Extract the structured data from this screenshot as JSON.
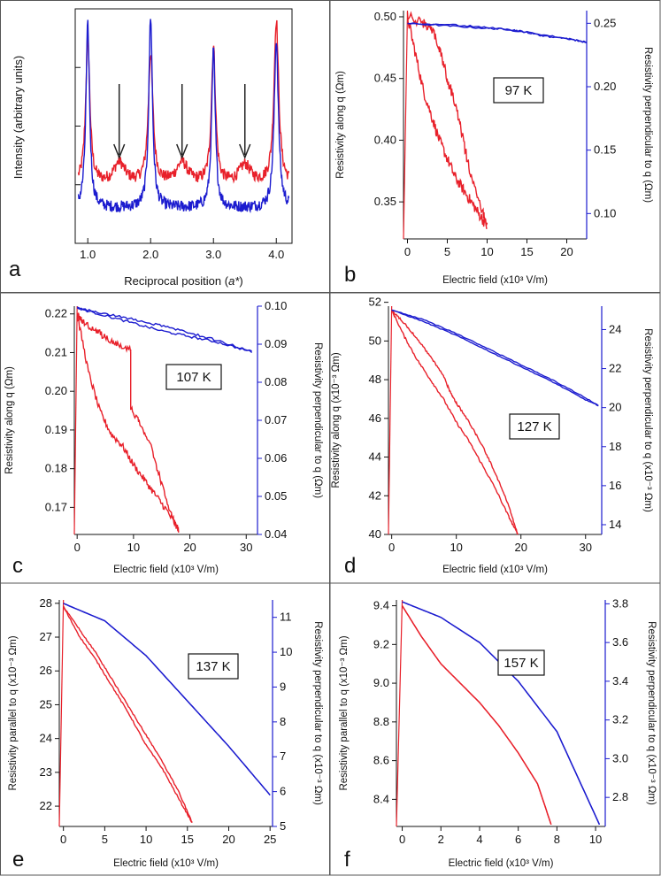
{
  "figure": {
    "colors": {
      "red": "#e8202a",
      "blue": "#1c1ccf",
      "frame": "#555555",
      "arrow": "#222222"
    }
  },
  "chart_data": [
    {
      "panel": "a",
      "type": "line",
      "title": "",
      "xlabel": "Reciprocal position (a*)",
      "xlabel_parts": [
        "Reciprocal position (",
        "a*",
        ")"
      ],
      "ylabel": "Intensity (arbitrary units)",
      "xlim": [
        0.8,
        4.25
      ],
      "ylim": [
        0,
        1
      ],
      "xticks": [
        1.0,
        2.0,
        3.0,
        4.0
      ],
      "xtick_labels": [
        "1.0",
        "2.0",
        "3.0",
        "4.0"
      ],
      "annotations": [
        {
          "type": "arrow",
          "x": 1.5
        },
        {
          "type": "arrow",
          "x": 2.5
        },
        {
          "type": "arrow",
          "x": 3.5
        }
      ],
      "series": [
        {
          "name": "red",
          "color": "#e8202a",
          "base": 0.25,
          "peaks": [
            [
              1.0,
              0.62,
              0.04
            ],
            [
              2.0,
              0.55,
              0.045
            ],
            [
              3.0,
              0.58,
              0.04
            ],
            [
              4.0,
              0.7,
              0.045
            ],
            [
              1.5,
              0.09,
              0.11
            ],
            [
              2.5,
              0.09,
              0.11
            ],
            [
              3.5,
              0.08,
              0.11
            ]
          ]
        },
        {
          "name": "blue",
          "color": "#1c1ccf",
          "base": 0.15,
          "peaks": [
            [
              1.0,
              0.78,
              0.035
            ],
            [
              2.0,
              0.82,
              0.035
            ],
            [
              3.0,
              0.67,
              0.035
            ],
            [
              4.0,
              0.72,
              0.04
            ]
          ]
        }
      ]
    },
    {
      "panel": "b",
      "type": "line",
      "label": "97 K",
      "xlabel": "Electric field (x10³ V/m)",
      "ylabel_left": "Resistivity along q (Ωm)",
      "ylabel_right": "Resistivity perpendicular to q (Ωm)",
      "xlim": [
        -0.5,
        22.5
      ],
      "ylim_left": [
        0.32,
        0.505
      ],
      "ylim_right": [
        0.08,
        0.26
      ],
      "xticks": [
        0,
        5,
        10,
        15,
        20
      ],
      "xtick_labels": [
        "0",
        "5",
        "10",
        "15",
        "20"
      ],
      "yticks_left": [
        0.35,
        0.4,
        0.45,
        0.5
      ],
      "ytick_left_labels": [
        "0.35",
        "0.40",
        "0.45",
        "0.50"
      ],
      "yticks_right": [
        0.1,
        0.15,
        0.2,
        0.25
      ],
      "ytick_right_labels": [
        "0.10",
        "0.15",
        "0.20",
        "0.25"
      ],
      "red": {
        "down": [
          [
            0,
            0.5
          ],
          [
            1,
            0.47
          ],
          [
            2,
            0.44
          ],
          [
            3,
            0.42
          ],
          [
            4,
            0.4
          ],
          [
            5,
            0.385
          ],
          [
            6,
            0.37
          ],
          [
            7,
            0.36
          ],
          [
            8,
            0.35
          ],
          [
            9,
            0.34
          ],
          [
            10,
            0.33
          ]
        ],
        "up": [
          [
            10,
            0.33
          ],
          [
            9.5,
            0.34
          ],
          [
            8,
            0.37
          ],
          [
            7,
            0.4
          ],
          [
            6,
            0.43
          ],
          [
            5,
            0.45
          ],
          [
            4,
            0.475
          ],
          [
            3,
            0.49
          ],
          [
            2,
            0.495
          ],
          [
            0,
            0.5
          ]
        ],
        "noise": 0.004,
        "vline": 0.5
      },
      "blue": {
        "down": [
          [
            0,
            0.25
          ],
          [
            5,
            0.248
          ],
          [
            10,
            0.246
          ],
          [
            13,
            0.245
          ],
          [
            15,
            0.243
          ],
          [
            20,
            0.238
          ],
          [
            22.5,
            0.235
          ]
        ],
        "up": [
          [
            22.5,
            0.235
          ],
          [
            20,
            0.238
          ],
          [
            17,
            0.24
          ],
          [
            15,
            0.243
          ],
          [
            10,
            0.247
          ],
          [
            5,
            0.249
          ],
          [
            0,
            0.25
          ]
        ],
        "noise": 0.0006
      }
    },
    {
      "panel": "c",
      "type": "line",
      "label": "107 K",
      "xlabel": "Electric field (x10³ V/m)",
      "ylabel_left": "Resistivity along q (Ωm)",
      "ylabel_right": "Resistivity perpendicular to q (Ωm)",
      "xlim": [
        -0.5,
        32
      ],
      "ylim_left": [
        0.163,
        0.222
      ],
      "ylim_right": [
        0.04,
        0.1
      ],
      "xticks": [
        0,
        10,
        20,
        30
      ],
      "xtick_labels": [
        "0",
        "10",
        "20",
        "30"
      ],
      "yticks_left": [
        0.17,
        0.18,
        0.19,
        0.2,
        0.21,
        0.22
      ],
      "ytick_left_labels": [
        "0.17",
        "0.18",
        "0.19",
        "0.20",
        "0.21",
        "0.22"
      ],
      "yticks_right": [
        0.04,
        0.05,
        0.06,
        0.07,
        0.08,
        0.09,
        0.1
      ],
      "ytick_right_labels": [
        "0.04",
        "0.05",
        "0.06",
        "0.07",
        "0.08",
        "0.09",
        "0.10"
      ],
      "red": {
        "down": [
          [
            0,
            0.22
          ],
          [
            2,
            0.205
          ],
          [
            4,
            0.195
          ],
          [
            6,
            0.189
          ],
          [
            8,
            0.186
          ],
          [
            10,
            0.181
          ],
          [
            12,
            0.177
          ],
          [
            14,
            0.173
          ],
          [
            16,
            0.169
          ],
          [
            18,
            0.164
          ]
        ],
        "up": [
          [
            18,
            0.164
          ],
          [
            17,
            0.167
          ],
          [
            15,
            0.176
          ],
          [
            13,
            0.186
          ],
          [
            11,
            0.192
          ],
          [
            9.5,
            0.196
          ],
          [
            9.5,
            0.211
          ],
          [
            7,
            0.212
          ],
          [
            5,
            0.214
          ],
          [
            3,
            0.216
          ],
          [
            1,
            0.218
          ],
          [
            0,
            0.22
          ]
        ],
        "noise": 0.0008,
        "vline": 0.5
      },
      "blue": {
        "down": [
          [
            0,
            0.0995
          ],
          [
            5,
            0.0975
          ],
          [
            10,
            0.0955
          ],
          [
            15,
            0.0935
          ],
          [
            20,
            0.092
          ],
          [
            25,
            0.0905
          ],
          [
            31,
            0.088
          ]
        ],
        "up": [
          [
            31,
            0.088
          ],
          [
            25,
            0.091
          ],
          [
            20,
            0.093
          ],
          [
            15,
            0.0948
          ],
          [
            10,
            0.0965
          ],
          [
            5,
            0.098
          ],
          [
            0,
            0.0995
          ]
        ],
        "noise": 0.0003
      }
    },
    {
      "panel": "d",
      "type": "line",
      "label": "127 K",
      "xlabel": "Electric field (x10³ V/m)",
      "ylabel_left": "Resistivity along q (x10⁻³ Ωm)",
      "ylabel_right": "Resistivity perpendicular to q (x10⁻³ Ωm)",
      "xlim": [
        -0.5,
        32.5
      ],
      "ylim_left": [
        40,
        51.8
      ],
      "ylim_right": [
        13.5,
        25.2
      ],
      "xticks": [
        0,
        10,
        20,
        30
      ],
      "xtick_labels": [
        "0",
        "10",
        "20",
        "30"
      ],
      "yticks_left": [
        40,
        42,
        44,
        46,
        48,
        50,
        52
      ],
      "ytick_left_labels": [
        "40",
        "42",
        "44",
        "46",
        "48",
        "50",
        "52"
      ],
      "yticks_right": [
        14,
        16,
        18,
        20,
        22,
        24
      ],
      "ytick_right_labels": [
        "14",
        "16",
        "18",
        "20",
        "22",
        "24"
      ],
      "red": {
        "down": [
          [
            0,
            51.6
          ],
          [
            2,
            50.2
          ],
          [
            4,
            49.0
          ],
          [
            6,
            48.0
          ],
          [
            8,
            47.0
          ],
          [
            10,
            45.8
          ],
          [
            12,
            44.8
          ],
          [
            14,
            43.6
          ],
          [
            16,
            42.4
          ],
          [
            18,
            41.0
          ],
          [
            19.5,
            40.0
          ]
        ],
        "up": [
          [
            19.5,
            40.0
          ],
          [
            18,
            41.6
          ],
          [
            16,
            43.2
          ],
          [
            14,
            44.6
          ],
          [
            12,
            45.8
          ],
          [
            10,
            46.8
          ],
          [
            9,
            47.4
          ],
          [
            8,
            48.2
          ],
          [
            6,
            49.2
          ],
          [
            4,
            50.1
          ],
          [
            2,
            50.9
          ],
          [
            0,
            51.6
          ]
        ],
        "noise": 0.05,
        "vline": 0.5
      },
      "blue": {
        "down": [
          [
            0,
            25.0
          ],
          [
            5,
            24.4
          ],
          [
            10,
            23.7
          ],
          [
            15,
            22.9
          ],
          [
            20,
            22.1
          ],
          [
            25,
            21.3
          ],
          [
            30,
            20.4
          ],
          [
            32,
            20.1
          ]
        ],
        "up": [
          [
            32,
            20.1
          ],
          [
            30,
            20.5
          ],
          [
            25,
            21.4
          ],
          [
            20,
            22.2
          ],
          [
            15,
            23.0
          ],
          [
            10,
            23.8
          ],
          [
            5,
            24.5
          ],
          [
            0,
            25.0
          ]
        ],
        "noise": 0.02
      }
    },
    {
      "panel": "e",
      "type": "line",
      "label": "137 K",
      "xlabel": "Electric field (x10³ V/m)",
      "ylabel_left": "Resistivity parallel to q (x10⁻³ Ωm)",
      "ylabel_right": "Resistivity perpendicular to q (x10⁻³ Ωm)",
      "xlim": [
        -0.5,
        25.3
      ],
      "ylim_left": [
        21.4,
        28.1
      ],
      "ylim_right": [
        5.0,
        11.5
      ],
      "xticks": [
        0,
        5,
        10,
        15,
        20,
        25
      ],
      "xtick_labels": [
        "0",
        "5",
        "10",
        "15",
        "20",
        "25"
      ],
      "yticks_left": [
        22,
        23,
        24,
        25,
        26,
        27,
        28
      ],
      "ytick_left_labels": [
        "22",
        "23",
        "24",
        "25",
        "26",
        "27",
        "28"
      ],
      "yticks_right": [
        5,
        6,
        7,
        8,
        9,
        10,
        11
      ],
      "ytick_right_labels": [
        "5",
        "6",
        "7",
        "8",
        "9",
        "10",
        "11"
      ],
      "red": {
        "down": [
          [
            0,
            27.9
          ],
          [
            2,
            27.0
          ],
          [
            4,
            26.3
          ],
          [
            6,
            25.5
          ],
          [
            8,
            24.7
          ],
          [
            10,
            23.8
          ],
          [
            12,
            23.1
          ],
          [
            14,
            22.2
          ],
          [
            15.6,
            21.5
          ]
        ],
        "up": [
          [
            15.6,
            21.5
          ],
          [
            14,
            22.4
          ],
          [
            12,
            23.3
          ],
          [
            10,
            24.1
          ],
          [
            8,
            24.9
          ],
          [
            6,
            25.7
          ],
          [
            4,
            26.5
          ],
          [
            2,
            27.2
          ],
          [
            0,
            27.9
          ]
        ],
        "noise": 0.02,
        "vline": 0.5
      },
      "blue": {
        "down": [
          [
            0,
            11.4
          ],
          [
            5,
            10.9
          ],
          [
            10,
            9.9
          ],
          [
            15,
            8.6
          ],
          [
            20,
            7.3
          ],
          [
            25,
            5.9
          ]
        ],
        "up": [
          [
            25,
            5.9
          ],
          [
            20,
            7.3
          ],
          [
            15,
            8.6
          ],
          [
            10,
            9.9
          ],
          [
            5,
            10.9
          ],
          [
            0,
            11.4
          ]
        ],
        "noise": 0
      }
    },
    {
      "panel": "f",
      "type": "line",
      "label": "157 K",
      "xlabel": "Electric field (x10³ V/m)",
      "ylabel_left": "Resistivity parallel to q (x10⁻³ Ωm)",
      "ylabel_right": "Resistivity perpendicular to q (x10⁻³ Ωm)",
      "xlim": [
        -0.3,
        10.5
      ],
      "ylim_left": [
        8.26,
        9.43
      ],
      "ylim_right": [
        2.65,
        3.82
      ],
      "xticks": [
        0,
        2,
        4,
        6,
        8,
        10
      ],
      "xtick_labels": [
        "0",
        "2",
        "4",
        "6",
        "8",
        "10"
      ],
      "yticks_left": [
        8.4,
        8.6,
        8.8,
        9.0,
        9.2,
        9.4
      ],
      "ytick_left_labels": [
        "8.4",
        "8.6",
        "8.8",
        "9.0",
        "9.2",
        "9.4"
      ],
      "yticks_right": [
        2.8,
        3.0,
        3.2,
        3.4,
        3.6,
        3.8
      ],
      "ytick_right_labels": [
        "2.8",
        "3.0",
        "3.2",
        "3.4",
        "3.6",
        "3.8"
      ],
      "red": {
        "down": [
          [
            0,
            9.4
          ],
          [
            1,
            9.24
          ],
          [
            2,
            9.1
          ],
          [
            3,
            9.0
          ],
          [
            4,
            8.9
          ],
          [
            5,
            8.78
          ],
          [
            6,
            8.64
          ],
          [
            7,
            8.48
          ],
          [
            7.7,
            8.27
          ]
        ],
        "up": [
          [
            7.7,
            8.27
          ],
          [
            7,
            8.48
          ],
          [
            6,
            8.64
          ],
          [
            5,
            8.78
          ],
          [
            4,
            8.9
          ],
          [
            3,
            9.0
          ],
          [
            2,
            9.1
          ],
          [
            1,
            9.24
          ],
          [
            0,
            9.4
          ]
        ],
        "noise": 0,
        "vline": 0.3
      },
      "blue": {
        "down": [
          [
            0,
            3.81
          ],
          [
            2,
            3.73
          ],
          [
            4,
            3.6
          ],
          [
            6,
            3.4
          ],
          [
            8,
            3.14
          ],
          [
            10.2,
            2.66
          ]
        ],
        "up": [
          [
            10.2,
            2.66
          ],
          [
            8,
            3.14
          ],
          [
            6,
            3.4
          ],
          [
            4,
            3.6
          ],
          [
            2,
            3.73
          ],
          [
            0,
            3.81
          ]
        ],
        "noise": 0
      }
    }
  ]
}
